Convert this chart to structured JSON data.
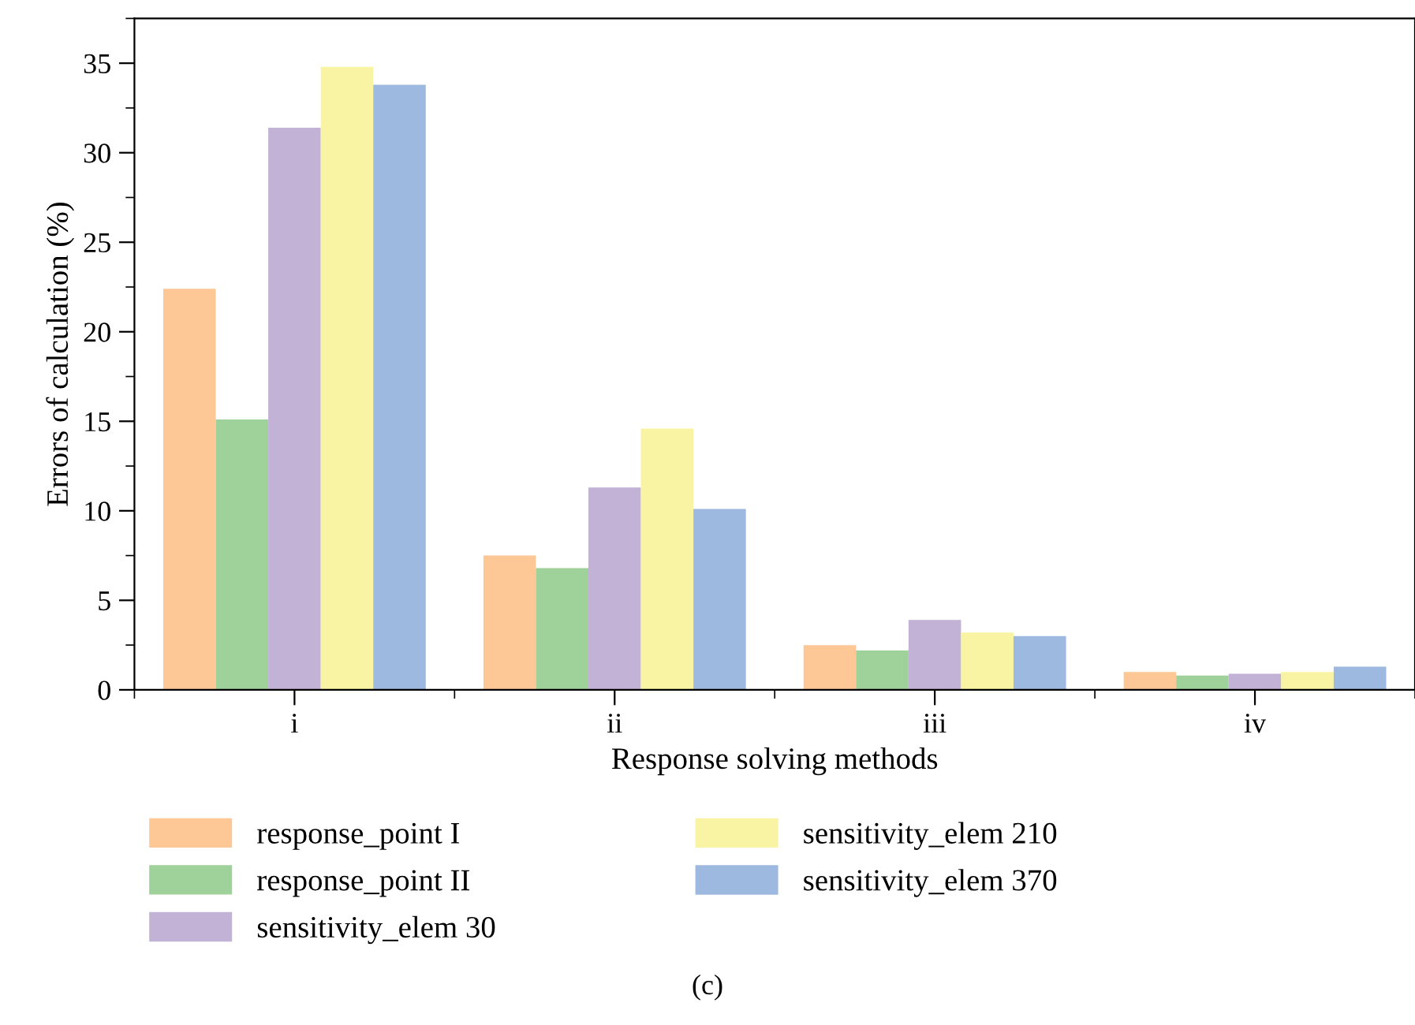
{
  "chart_data": {
    "type": "bar",
    "xlabel": "Response solving methods",
    "ylabel": "Errors of calculation (%)",
    "categories": [
      "i",
      "ii",
      "iii",
      "iv"
    ],
    "series": [
      {
        "name": "response_point I",
        "color": "#fdc895",
        "values": [
          22.4,
          7.5,
          2.5,
          1.0
        ]
      },
      {
        "name": "response_point II",
        "color": "#9fd19a",
        "values": [
          15.1,
          6.8,
          2.2,
          0.8
        ]
      },
      {
        "name": "sensitivity_elem 30",
        "color": "#c2b2d6",
        "values": [
          31.4,
          11.3,
          3.9,
          0.9
        ]
      },
      {
        "name": "sensitivity_elem 210",
        "color": "#f8f4a4",
        "values": [
          34.8,
          14.6,
          3.2,
          1.0
        ]
      },
      {
        "name": "sensitivity_elem 370",
        "color": "#9eb9e0",
        "values": [
          33.8,
          10.1,
          3.0,
          1.3
        ]
      }
    ],
    "ylim": [
      0,
      37.5
    ],
    "yticks": [
      0,
      5,
      10,
      15,
      20,
      25,
      30,
      35
    ],
    "grid": false,
    "legend": "bottom",
    "annotations": [
      "(c)"
    ]
  }
}
